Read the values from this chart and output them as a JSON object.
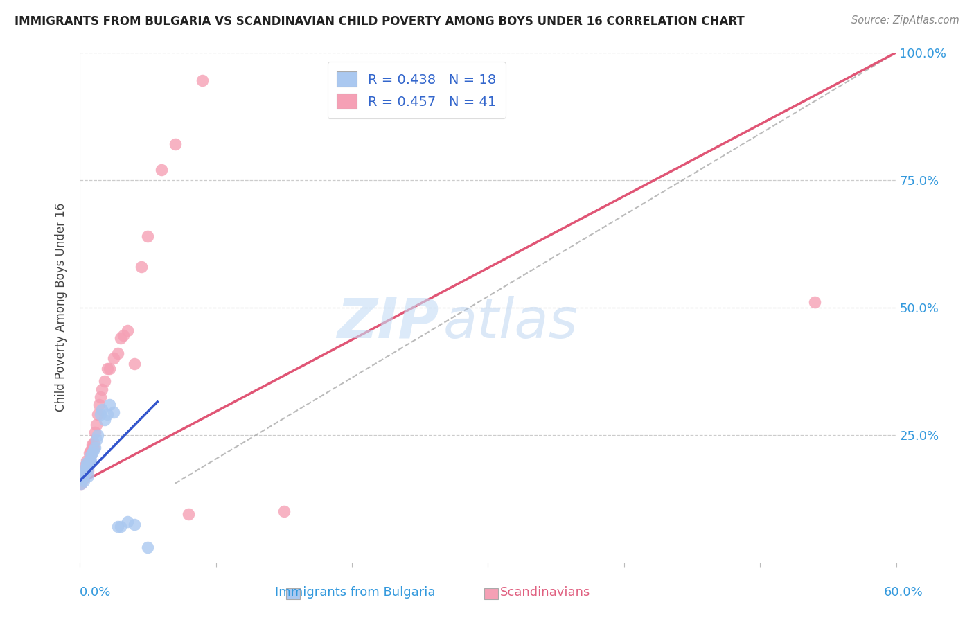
{
  "title": "IMMIGRANTS FROM BULGARIA VS SCANDINAVIAN CHILD POVERTY AMONG BOYS UNDER 16 CORRELATION CHART",
  "source": "Source: ZipAtlas.com",
  "ylabel": "Child Poverty Among Boys Under 16",
  "xlim": [
    0.0,
    0.6
  ],
  "ylim": [
    0.0,
    1.0
  ],
  "blue_color": "#aac8f0",
  "pink_color": "#f5a0b5",
  "blue_line_color": "#3355cc",
  "pink_line_color": "#e05575",
  "gray_dash_color": "#aaaaaa",
  "watermark_zip": "ZIP",
  "watermark_atlas": "atlas",
  "blue_scatter_x": [
    0.001,
    0.002,
    0.002,
    0.003,
    0.004,
    0.004,
    0.005,
    0.005,
    0.006,
    0.006,
    0.007,
    0.007,
    0.008,
    0.008,
    0.009,
    0.01,
    0.011,
    0.012,
    0.013,
    0.015,
    0.016,
    0.018,
    0.02,
    0.022,
    0.025,
    0.028,
    0.03,
    0.035,
    0.04,
    0.05
  ],
  "blue_scatter_y": [
    0.155,
    0.165,
    0.175,
    0.16,
    0.185,
    0.175,
    0.195,
    0.19,
    0.17,
    0.185,
    0.2,
    0.195,
    0.21,
    0.2,
    0.215,
    0.22,
    0.225,
    0.24,
    0.25,
    0.29,
    0.3,
    0.28,
    0.29,
    0.31,
    0.295,
    0.07,
    0.07,
    0.08,
    0.075,
    0.03
  ],
  "pink_scatter_x": [
    0.001,
    0.002,
    0.003,
    0.003,
    0.004,
    0.004,
    0.005,
    0.005,
    0.006,
    0.006,
    0.007,
    0.007,
    0.008,
    0.008,
    0.009,
    0.009,
    0.01,
    0.01,
    0.011,
    0.012,
    0.013,
    0.014,
    0.015,
    0.016,
    0.018,
    0.02,
    0.022,
    0.025,
    0.028,
    0.03,
    0.032,
    0.035,
    0.04,
    0.045,
    0.05,
    0.06,
    0.07,
    0.08,
    0.09,
    0.15,
    0.54
  ],
  "pink_scatter_y": [
    0.155,
    0.17,
    0.165,
    0.18,
    0.175,
    0.19,
    0.185,
    0.2,
    0.195,
    0.18,
    0.2,
    0.215,
    0.21,
    0.22,
    0.225,
    0.23,
    0.225,
    0.235,
    0.255,
    0.27,
    0.29,
    0.31,
    0.325,
    0.34,
    0.355,
    0.38,
    0.38,
    0.4,
    0.41,
    0.44,
    0.445,
    0.455,
    0.39,
    0.58,
    0.64,
    0.77,
    0.82,
    0.095,
    0.945,
    0.1,
    0.51
  ],
  "blue_line_x": [
    0.0,
    0.057
  ],
  "blue_line_y": [
    0.16,
    0.315
  ],
  "pink_line_x": [
    0.0,
    0.6
  ],
  "pink_line_y": [
    0.155,
    1.0
  ],
  "gray_line_x": [
    0.07,
    0.6
  ],
  "gray_line_y": [
    0.155,
    1.0
  ]
}
